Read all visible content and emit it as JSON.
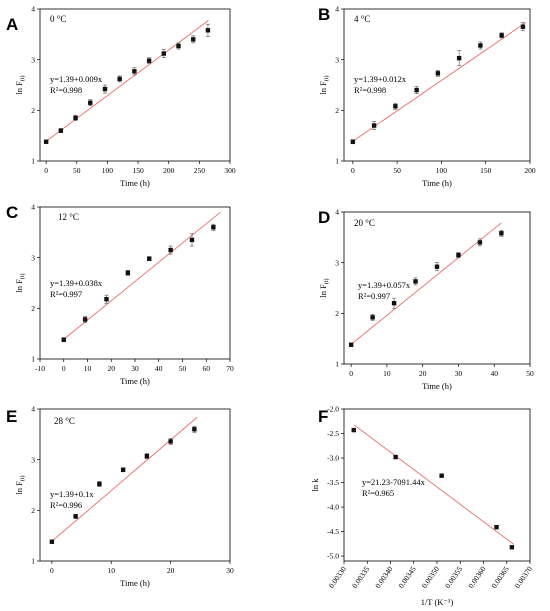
{
  "chart_data": [
    {
      "type": "scatter",
      "panel": "A",
      "temperature": "0 °C",
      "xlabel": "Time (h)",
      "ylabel": "ln F",
      "ylabel_sub": "(t)",
      "xlim": [
        -10,
        300
      ],
      "ylim": [
        1,
        4
      ],
      "xticks": [
        0,
        50,
        100,
        150,
        200,
        250,
        300
      ],
      "yticks": [
        1,
        2,
        3,
        4
      ],
      "equation": "y=1.39+0.009x",
      "r2": "R²=0.998",
      "fit": {
        "intercept": 1.39,
        "slope": 0.009,
        "x": [
          0,
          265
        ]
      },
      "x": [
        0,
        24,
        48,
        72,
        96,
        120,
        144,
        168,
        192,
        216,
        240,
        264
      ],
      "y": [
        1.38,
        1.6,
        1.85,
        2.15,
        2.42,
        2.62,
        2.77,
        2.98,
        3.12,
        3.27,
        3.4,
        3.58
      ],
      "err": [
        0.03,
        0.04,
        0.05,
        0.06,
        0.08,
        0.06,
        0.07,
        0.06,
        0.08,
        0.06,
        0.07,
        0.12
      ]
    },
    {
      "type": "scatter",
      "panel": "B",
      "temperature": "4 °C",
      "xlabel": "Time (h)",
      "ylabel": "ln F",
      "ylabel_sub": "(t)",
      "xlim": [
        -10,
        200
      ],
      "ylim": [
        1,
        4
      ],
      "xticks": [
        0,
        50,
        100,
        150,
        200
      ],
      "yticks": [
        1,
        2,
        3,
        4
      ],
      "equation": "y=1.39+0.012x",
      "r2": "R²=0.998",
      "fit": {
        "intercept": 1.39,
        "slope": 0.012,
        "x": [
          0,
          195
        ]
      },
      "x": [
        0,
        24,
        48,
        72,
        96,
        120,
        144,
        168,
        192
      ],
      "y": [
        1.38,
        1.7,
        2.08,
        2.4,
        2.73,
        3.03,
        3.28,
        3.48,
        3.65
      ],
      "err": [
        0.04,
        0.08,
        0.06,
        0.07,
        0.06,
        0.15,
        0.07,
        0.05,
        0.08
      ]
    },
    {
      "type": "scatter",
      "panel": "C",
      "temperature": "12 °C",
      "xlabel": "Time (h)",
      "ylabel": "ln F",
      "ylabel_sub": "(t)",
      "xlim": [
        -10,
        70
      ],
      "ylim": [
        1,
        4
      ],
      "xticks": [
        -10,
        0,
        10,
        20,
        30,
        40,
        50,
        60,
        70
      ],
      "yticks": [
        1,
        2,
        3,
        4
      ],
      "equation": "y=1.39+0.038x",
      "r2": "R²=0.997",
      "fit": {
        "intercept": 1.39,
        "slope": 0.038,
        "x": [
          0,
          66
        ]
      },
      "x": [
        0,
        9,
        18,
        27,
        36,
        45,
        54,
        63
      ],
      "y": [
        1.38,
        1.78,
        2.18,
        2.7,
        2.98,
        3.15,
        3.35,
        3.6
      ],
      "err": [
        0.04,
        0.06,
        0.08,
        0.05,
        0.04,
        0.08,
        0.12,
        0.06
      ]
    },
    {
      "type": "scatter",
      "panel": "D",
      "temperature": "20 °C",
      "xlabel": "Time (h)",
      "ylabel": "ln F",
      "ylabel_sub": "(t)",
      "xlim": [
        -2,
        50
      ],
      "ylim": [
        1,
        4
      ],
      "xticks": [
        0,
        10,
        20,
        30,
        40,
        50
      ],
      "yticks": [
        1,
        2,
        3,
        4
      ],
      "equation": "y=1.39+0.057x",
      "r2": "R²=0.997",
      "fit": {
        "intercept": 1.39,
        "slope": 0.057,
        "x": [
          0,
          42
        ]
      },
      "x": [
        0,
        6,
        12,
        18,
        24,
        30,
        36,
        42
      ],
      "y": [
        1.38,
        1.92,
        2.2,
        2.63,
        2.92,
        3.15,
        3.4,
        3.58
      ],
      "err": [
        0.03,
        0.06,
        0.1,
        0.07,
        0.08,
        0.05,
        0.07,
        0.06
      ]
    },
    {
      "type": "scatter",
      "panel": "E",
      "temperature": "28 °C",
      "xlabel": "Time (h)",
      "ylabel": "ln F",
      "ylabel_sub": "(t)",
      "xlim": [
        -2,
        30
      ],
      "ylim": [
        1,
        4
      ],
      "xticks": [
        0,
        10,
        20,
        30
      ],
      "yticks": [
        1,
        2,
        3,
        4
      ],
      "equation": "y=1.39+0.1x",
      "r2": "R²=0.996",
      "fit": {
        "intercept": 1.39,
        "slope": 0.1,
        "x": [
          0,
          24.5
        ]
      },
      "x": [
        0,
        4,
        8,
        12,
        16,
        20,
        24
      ],
      "y": [
        1.38,
        1.88,
        2.52,
        2.8,
        3.07,
        3.36,
        3.6
      ],
      "err": [
        0.03,
        0.04,
        0.05,
        0.04,
        0.05,
        0.06,
        0.06
      ]
    },
    {
      "type": "scatter",
      "panel": "F",
      "temperature": "",
      "xlabel": "1/T (K⁻¹)",
      "ylabel": "ln k",
      "ylabel_sub": "",
      "xlim": [
        0.0033,
        0.0037
      ],
      "ylim": [
        -5.1,
        -2.0
      ],
      "xticks": [
        "0.00330",
        "0.00335",
        "0.00340",
        "0.00345",
        "0.00350",
        "0.00355",
        "0.00360",
        "0.00365",
        "0.00370"
      ],
      "yticks": [
        "-2.0",
        "-2.5",
        "-3.0",
        "-3.5",
        "-4.0",
        "-4.5",
        "-5.0"
      ],
      "yticks_values": [
        -2.0,
        -2.5,
        -3.0,
        -3.5,
        -4.0,
        -4.5,
        -5.0
      ],
      "equation": "y=21.23-7091.44x",
      "r2": "R²=0.965",
      "fit": {
        "intercept": 21.23,
        "slope": -7091.44,
        "x": [
          0.003322,
          0.003665
        ]
      },
      "x": [
        0.003321,
        0.003411,
        0.00351,
        0.003628,
        0.003661
      ],
      "y": [
        -2.43,
        -2.98,
        -3.36,
        -4.41,
        -4.82
      ],
      "err": [
        0,
        0,
        0,
        0,
        0
      ]
    }
  ]
}
